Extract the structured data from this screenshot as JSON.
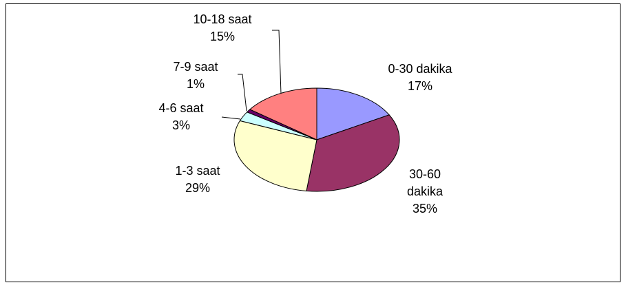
{
  "chart_data": {
    "type": "pie",
    "categories": [
      "0-30 dakika",
      "30-60 dakika",
      "1-3 saat",
      "4-6 saat",
      "7-9 saat",
      "10-18 saat"
    ],
    "values": [
      17,
      35,
      29,
      3,
      1,
      15
    ],
    "value_labels": [
      "17%",
      "35%",
      "29%",
      "3%",
      "1%",
      "15%"
    ],
    "colors": [
      "#9999ff",
      "#993366",
      "#ffffcc",
      "#ccffff",
      "#660066",
      "#ff8080"
    ]
  }
}
